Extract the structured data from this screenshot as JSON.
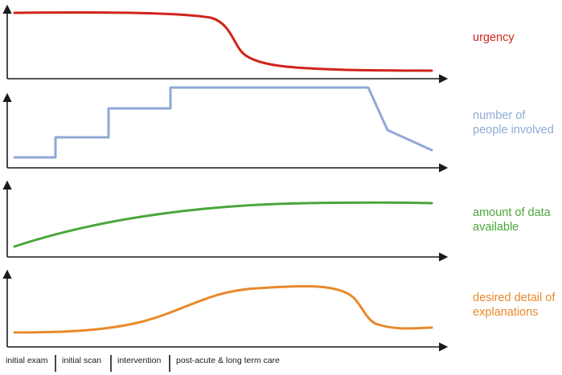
{
  "panels": [
    {
      "label_lines": [
        "urgency"
      ],
      "color": "#d0241c"
    },
    {
      "label_lines": [
        "number of",
        "people involved"
      ],
      "color": "#8fa9d6"
    },
    {
      "label_lines": [
        "amount of data",
        "available"
      ],
      "color": "#4aa63a"
    },
    {
      "label_lines": [
        "desired detail of",
        "explanations"
      ],
      "color": "#e8892c"
    }
  ],
  "phases": [
    "initial exam",
    "initial scan",
    "intervention",
    "post-acute & long term care"
  ]
}
